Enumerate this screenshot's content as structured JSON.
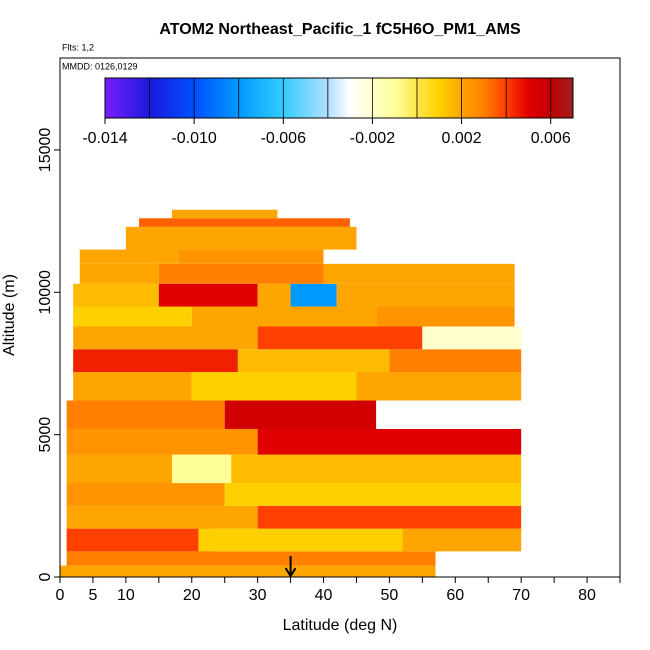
{
  "chart_data": {
    "type": "heatmap",
    "title": "ATOM2 Northeast_Pacific_1 fC5H6O_PM1_AMS",
    "subtitle": "Flts: 1,2",
    "annotation": "MMDD: 0126,0129",
    "x_label": "Latitude (deg N)",
    "y_label": "Altitude (m)",
    "xlim": [
      0,
      85
    ],
    "ylim": [
      0,
      18230
    ],
    "xticks": [
      0,
      5,
      10,
      20,
      30,
      40,
      50,
      60,
      70,
      80
    ],
    "xminorticks": [
      15,
      25,
      35,
      45,
      55,
      65,
      75,
      85
    ],
    "yticks": [
      0,
      5000,
      10000,
      15000
    ],
    "colorbar_lim": [
      -0.014,
      0.007
    ],
    "colorbar_ticks": [
      {
        "value": -0.014,
        "label": "-0.014"
      },
      {
        "value": -0.01,
        "label": "-0.010"
      },
      {
        "value": -0.006,
        "label": "-0.006"
      },
      {
        "value": -0.002,
        "label": "-0.002"
      },
      {
        "value": 0.002,
        "label": "0.002"
      },
      {
        "value": 0.006,
        "label": "0.006"
      }
    ],
    "colorbar_breaks": [
      -0.012,
      -0.01,
      -0.008,
      -0.006,
      -0.004,
      -0.002,
      0,
      0.002,
      0.004,
      0.006
    ],
    "colorscale": [
      [
        -0.014,
        "#7a1fff"
      ],
      [
        -0.012,
        "#1a1adb"
      ],
      [
        -0.01,
        "#0050ff"
      ],
      [
        -0.008,
        "#0099ff"
      ],
      [
        -0.006,
        "#33ccff"
      ],
      [
        -0.004,
        "#b0e0ff"
      ],
      [
        -0.003,
        "#ffffff"
      ],
      [
        -0.001,
        "#ffff99"
      ],
      [
        0.001,
        "#ffd000"
      ],
      [
        0.002,
        "#ffa500"
      ],
      [
        0.003,
        "#ff8000"
      ],
      [
        0.004,
        "#ff4000"
      ],
      [
        0.005,
        "#e00000"
      ],
      [
        0.006,
        "#c00000"
      ],
      [
        0.007,
        "#a02020"
      ]
    ],
    "arrow_lat": 35,
    "cells": [
      [
        0,
        57,
        0,
        400,
        0.002
      ],
      [
        1,
        57,
        400,
        900,
        0.003
      ],
      [
        1,
        23,
        900,
        1700,
        0.004
      ],
      [
        21,
        52,
        900,
        1700,
        0.001
      ],
      [
        52,
        70,
        900,
        1700,
        0.002
      ],
      [
        1,
        30,
        1700,
        2500,
        0.002
      ],
      [
        30,
        70,
        1700,
        2500,
        0.004
      ],
      [
        1,
        25,
        2500,
        3300,
        0.0025
      ],
      [
        25,
        70,
        2500,
        3300,
        0.001
      ],
      [
        1,
        17,
        3300,
        4300,
        0.002
      ],
      [
        17,
        26,
        3300,
        4300,
        -0.001
      ],
      [
        26,
        70,
        3300,
        4300,
        0.0015
      ],
      [
        1,
        30,
        4300,
        5200,
        0.0025
      ],
      [
        30,
        70,
        4300,
        5200,
        0.005
      ],
      [
        1,
        25,
        5200,
        6200,
        0.003
      ],
      [
        25,
        48,
        5200,
        6200,
        0.0055
      ],
      [
        48,
        70,
        5200,
        6200,
        -0.003
      ],
      [
        2,
        20,
        6200,
        7200,
        0.002
      ],
      [
        20,
        45,
        6200,
        7200,
        0.001
      ],
      [
        45,
        70,
        6200,
        7200,
        0.002
      ],
      [
        2,
        27,
        7200,
        8000,
        0.0045
      ],
      [
        27,
        50,
        7200,
        8000,
        0.0015
      ],
      [
        50,
        70,
        7200,
        8000,
        0.003
      ],
      [
        2,
        30,
        8000,
        8800,
        0.002
      ],
      [
        30,
        55,
        8000,
        8800,
        0.004
      ],
      [
        55,
        70,
        8000,
        8800,
        -0.002
      ],
      [
        2,
        20,
        8800,
        9500,
        0.001
      ],
      [
        20,
        48,
        8800,
        9500,
        0.002
      ],
      [
        48,
        69,
        8800,
        9500,
        0.0025
      ],
      [
        2,
        15,
        9500,
        10300,
        0.0015
      ],
      [
        15,
        30,
        9500,
        10300,
        0.005
      ],
      [
        30,
        35,
        9500,
        10300,
        0.002
      ],
      [
        35,
        42,
        9500,
        10300,
        -0.008
      ],
      [
        42,
        69,
        9500,
        10300,
        0.002
      ],
      [
        3,
        15,
        10300,
        11000,
        0.002
      ],
      [
        15,
        40,
        10300,
        11000,
        0.003
      ],
      [
        40,
        69,
        10300,
        11000,
        0.002
      ],
      [
        3,
        18,
        11000,
        11500,
        0.002
      ],
      [
        18,
        40,
        11000,
        11500,
        0.0025
      ],
      [
        10,
        45,
        11500,
        12300,
        0.002
      ],
      [
        12,
        44,
        12300,
        12600,
        0.0035
      ],
      [
        17,
        33,
        12600,
        12900,
        0.002
      ]
    ]
  }
}
